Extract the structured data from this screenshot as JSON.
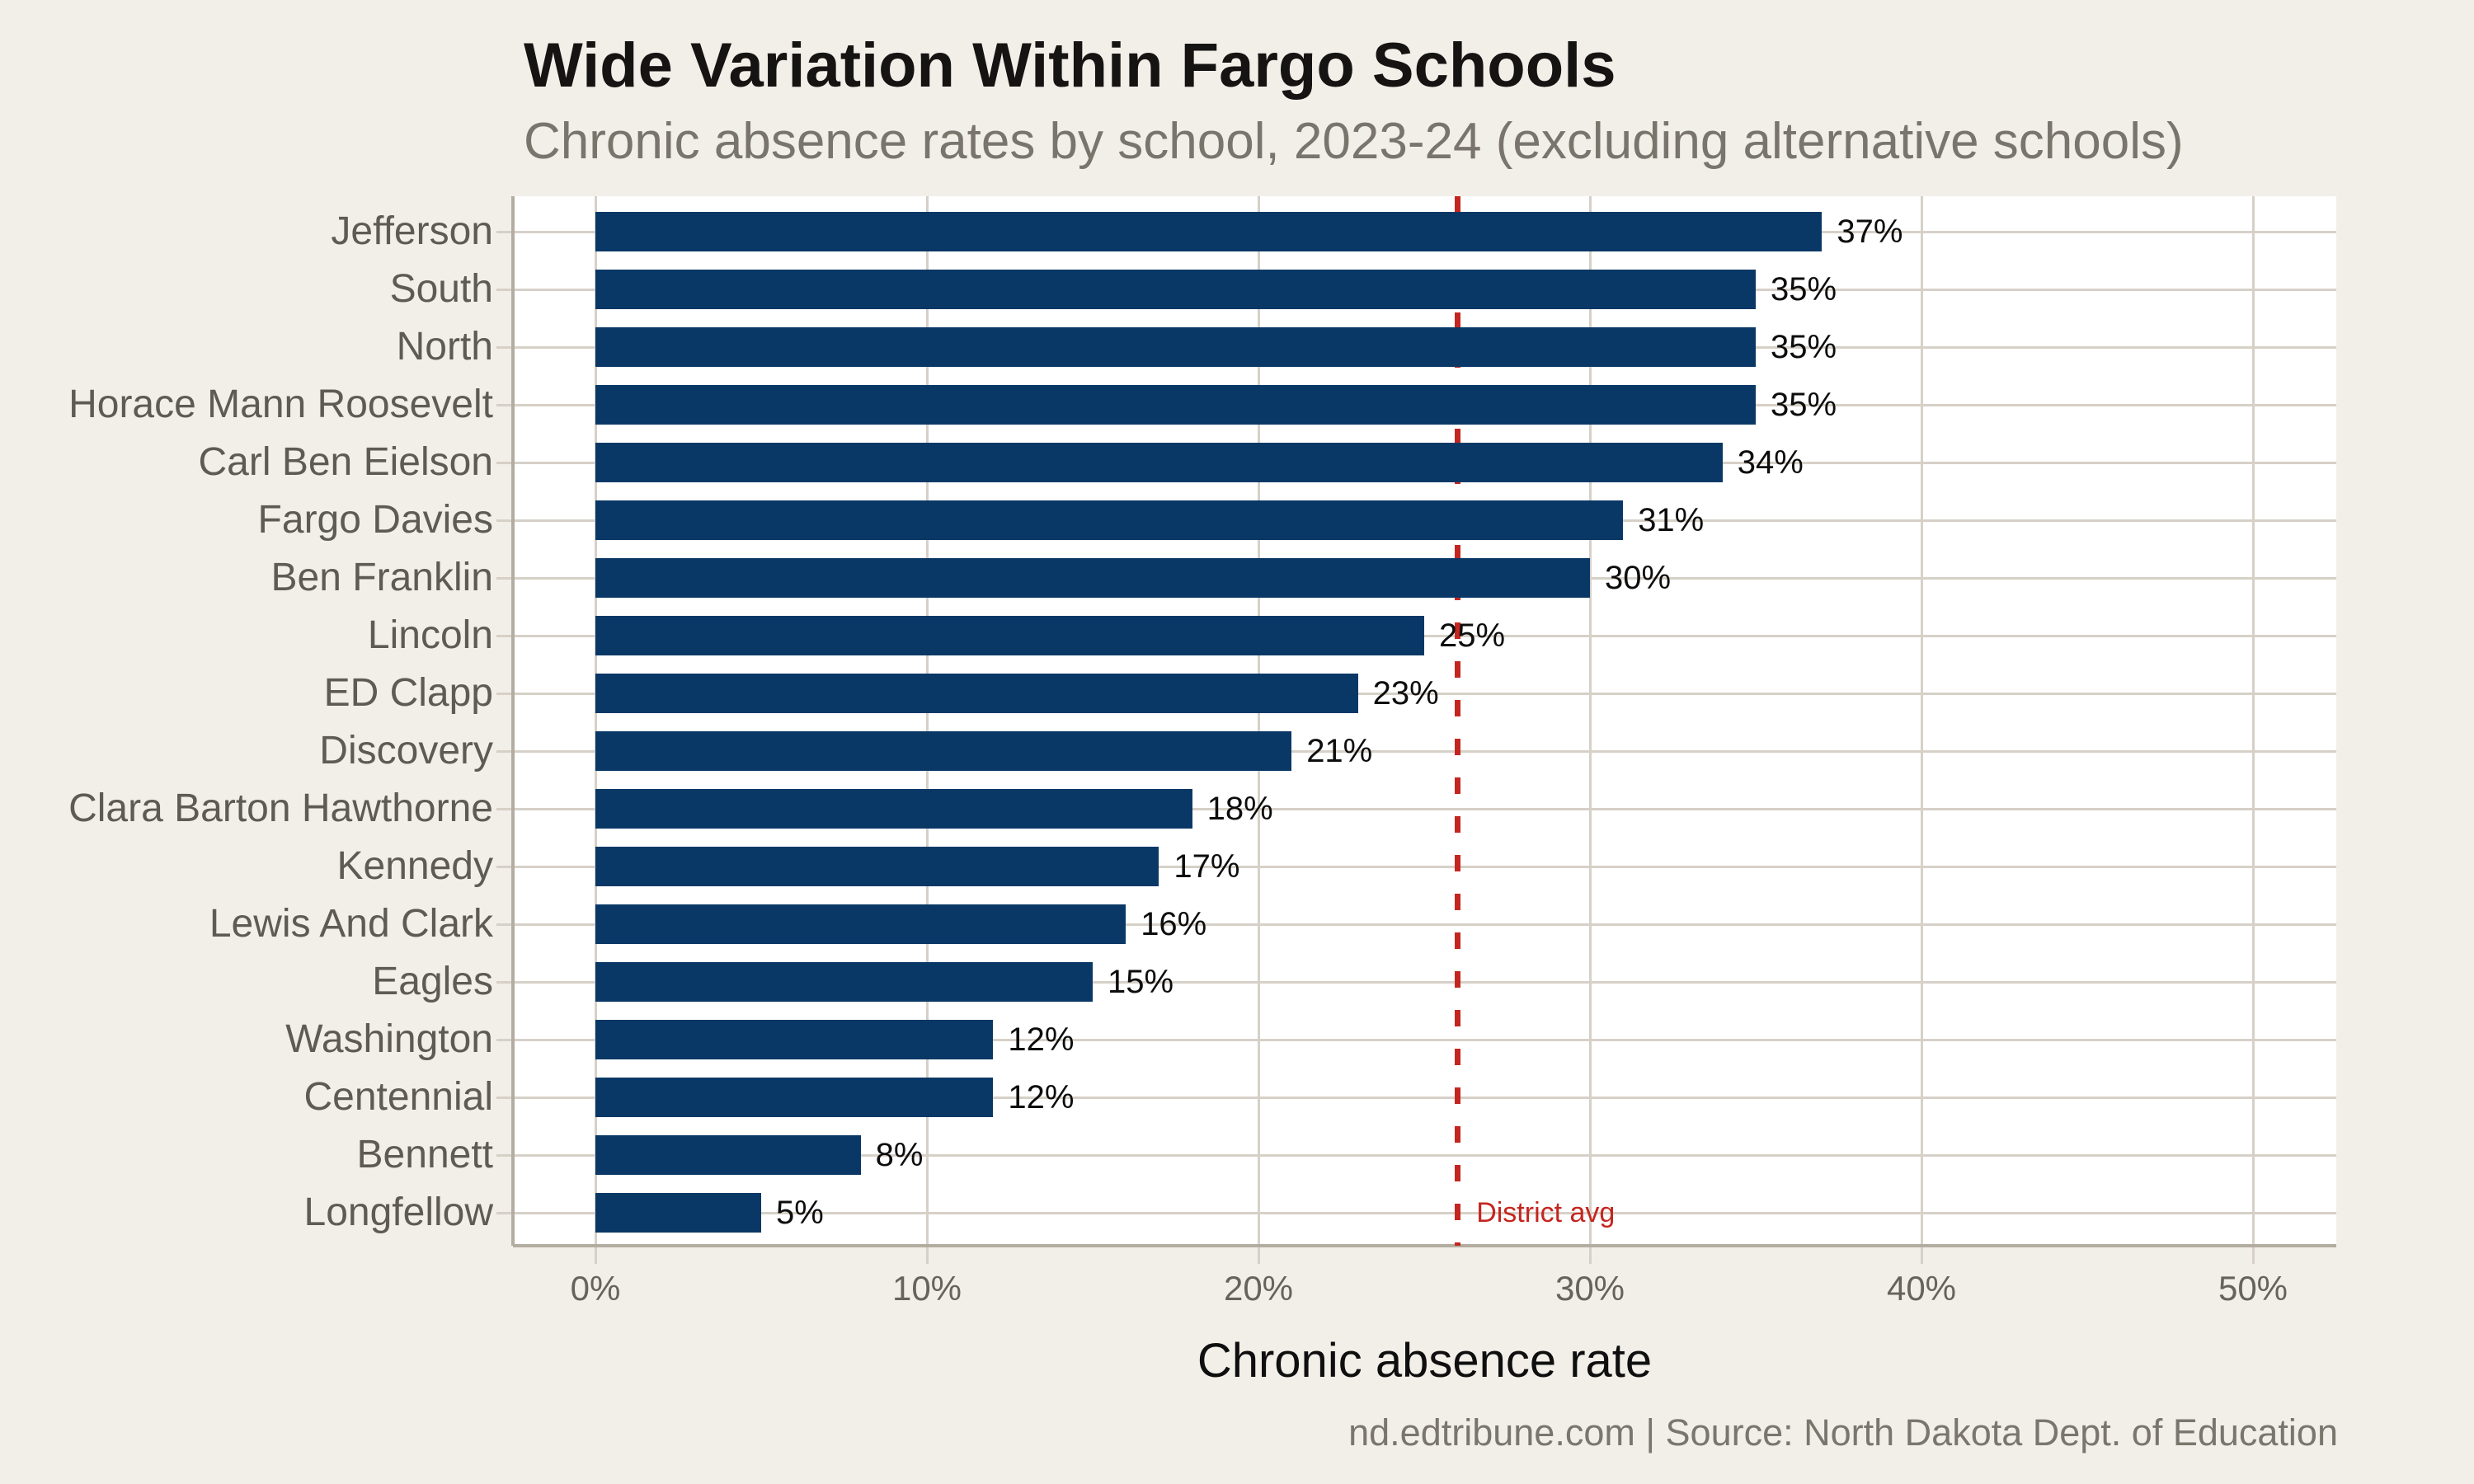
{
  "page": {
    "source_line": "nd.edtribune.com | Source: North Dakota Dept. of Education"
  },
  "chart_data": {
    "type": "bar",
    "orientation": "horizontal",
    "title": "Wide Variation Within Fargo Schools",
    "subtitle": "Chronic absence rates by school, 2023-24 (excluding alternative schools)",
    "xlabel": "Chronic absence rate",
    "categories": [
      "Jefferson",
      "South",
      "North",
      "Horace Mann Roosevelt",
      "Carl Ben Eielson",
      "Fargo Davies",
      "Ben Franklin",
      "Lincoln",
      "ED Clapp",
      "Discovery",
      "Clara Barton Hawthorne",
      "Kennedy",
      "Lewis And Clark",
      "Eagles",
      "Washington",
      "Centennial",
      "Bennett",
      "Longfellow"
    ],
    "values": [
      37,
      35,
      35,
      35,
      34,
      31,
      30,
      25,
      23,
      21,
      18,
      17,
      16,
      15,
      12,
      12,
      8,
      5
    ],
    "value_suffix": "%",
    "x_ticks": [
      0,
      10,
      20,
      30,
      40,
      50
    ],
    "x_tick_suffix": "%",
    "xlim": [
      0,
      52.5
    ],
    "grid": true,
    "legend_position": "none",
    "reference_line": {
      "value": 26,
      "label": "District avg"
    },
    "colors": {
      "bar": "#0a3866",
      "reference": "#c4261f",
      "background": "#f2efe9",
      "plot_background": "#ffffff",
      "gridline": "#d6d0c7",
      "axis_line": "#b3ada1",
      "category_label": "#5e5b55",
      "value_label": "#0d0d0d",
      "tick_label": "#66635c",
      "title": "#161412",
      "subtitle": "#7a756c",
      "footer": "#7b766d"
    }
  }
}
